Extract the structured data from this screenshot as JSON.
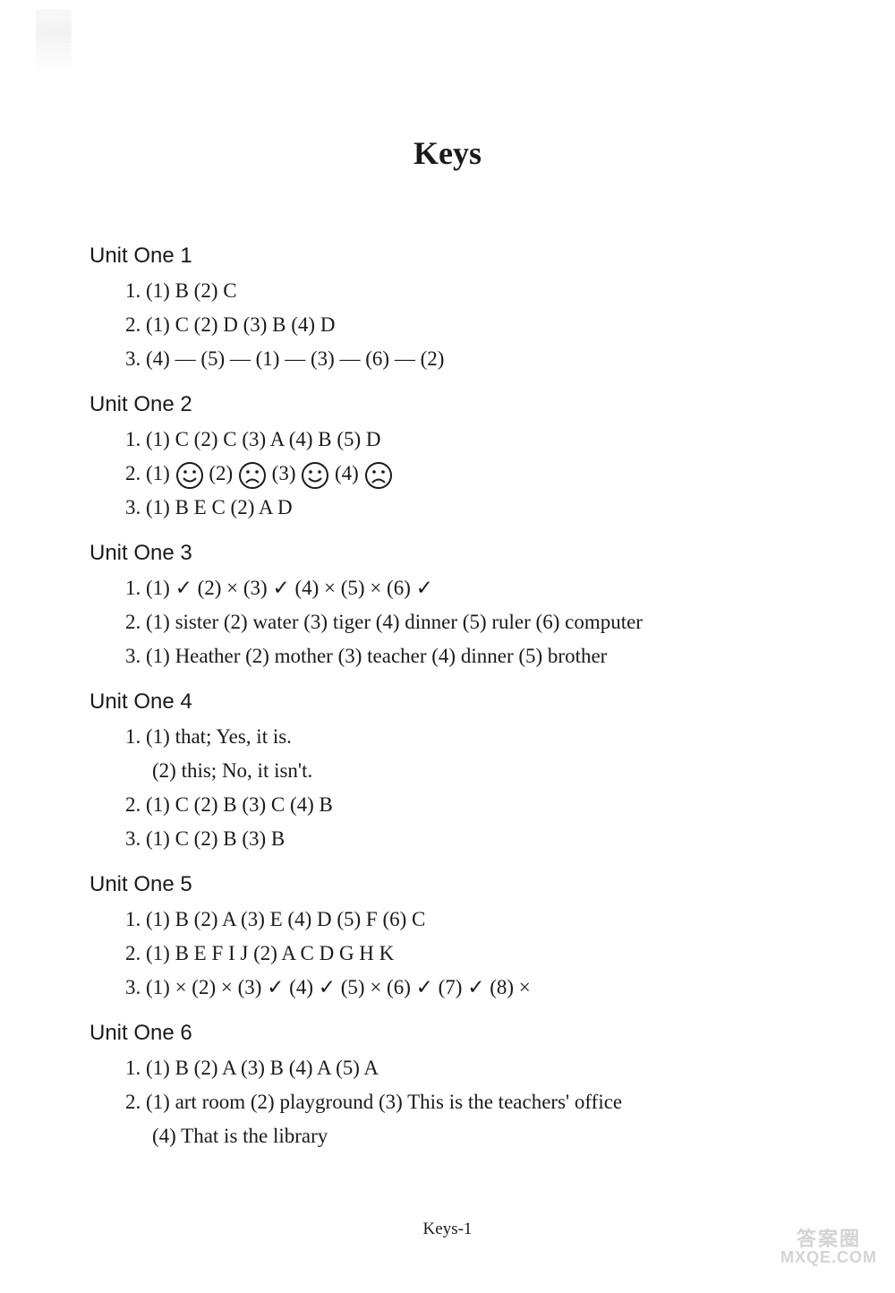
{
  "title": "Keys",
  "footer": "Keys-1",
  "watermark": {
    "l1": "答案圈",
    "l2": "MXQE.COM"
  },
  "text_color": "#1a1a1a",
  "watermark_color": "#d4d4d4",
  "background_color": "#ffffff",
  "title_fontsize": 36,
  "unit_fontsize": 24,
  "body_fontsize": 23,
  "line_height": 38,
  "face_glyphs": {
    "smile": {
      "stroke": "#1a1a1a",
      "bg": "#ffffff",
      "circle_r": 14
    },
    "frown": {
      "stroke": "#1a1a1a",
      "bg": "#ffffff",
      "circle_r": 14
    }
  },
  "units": {
    "u1": {
      "heading": "Unit One 1",
      "l1": "1. (1) B   (2) C",
      "l2": "2. (1) C   (2) D   (3) B   (4) D",
      "l3": "3. (4) — (5) — (1) — (3) — (6) — (2)"
    },
    "u2": {
      "heading": "Unit One 2",
      "l1": "1. (1) C   (2) C   (3) A   (4) B   (5) D",
      "l2p1": "2. (1) ",
      "l2p2": "   (2) ",
      "l2p3": "   (3) ",
      "l2p4": "   (4) ",
      "faces": [
        "smile",
        "frown",
        "smile",
        "frown"
      ],
      "l3": "3. (1) B   E   C   (2) A   D"
    },
    "u3": {
      "heading": "Unit One 3",
      "l1": "1. (1) ✓   (2) ×   (3) ✓   (4) ×   (5) ×   (6) ✓",
      "l2": "2. (1) sister   (2) water   (3) tiger   (4) dinner   (5) ruler   (6) computer",
      "l3": "3. (1) Heather   (2) mother   (3) teacher   (4) dinner   (5) brother"
    },
    "u4": {
      "heading": "Unit One 4",
      "l1": "1. (1) that; Yes, it is.",
      "l1b": "(2) this; No, it isn't.",
      "l2": "2. (1) C   (2) B   (3) C   (4) B",
      "l3": "3. (1) C   (2) B   (3) B"
    },
    "u5": {
      "heading": "Unit One 5",
      "l1": "1. (1) B   (2) A   (3) E   (4) D   (5) F   (6) C",
      "l2": "2. (1) B   E   F   I   J   (2) A   C   D   G   H   K",
      "l3": "3. (1) ×   (2) ×   (3) ✓   (4) ✓   (5) ×   (6) ✓   (7) ✓   (8) ×"
    },
    "u6": {
      "heading": "Unit One 6",
      "l1": "1. (1) B   (2) A   (3) B   (4) A   (5) A",
      "l2": "2. (1) art room   (2) playground   (3) This is the teachers' office",
      "l2b": "(4) That is the library"
    }
  }
}
